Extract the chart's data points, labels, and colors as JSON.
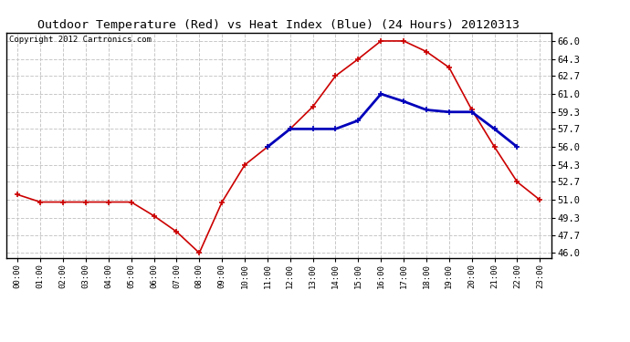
{
  "title": "Outdoor Temperature (Red) vs Heat Index (Blue) (24 Hours) 20120313",
  "copyright_text": "Copyright 2012 Cartronics.com",
  "x_labels": [
    "00:00",
    "01:00",
    "02:00",
    "03:00",
    "04:00",
    "05:00",
    "06:00",
    "07:00",
    "08:00",
    "09:00",
    "10:00",
    "11:00",
    "12:00",
    "13:00",
    "14:00",
    "15:00",
    "16:00",
    "17:00",
    "18:00",
    "19:00",
    "20:00",
    "21:00",
    "22:00",
    "23:00"
  ],
  "temp_red": [
    51.5,
    50.8,
    50.8,
    50.8,
    50.8,
    50.8,
    49.5,
    48.0,
    46.0,
    50.8,
    54.3,
    56.0,
    57.7,
    59.8,
    62.7,
    64.3,
    66.0,
    66.0,
    65.0,
    63.5,
    59.5,
    56.0,
    52.7,
    51.0
  ],
  "heat_index_blue": [
    null,
    null,
    null,
    null,
    null,
    null,
    null,
    null,
    null,
    null,
    null,
    56.0,
    57.7,
    57.7,
    57.7,
    58.5,
    61.0,
    60.3,
    59.5,
    59.3,
    59.3,
    57.7,
    56.0,
    null
  ],
  "y_ticks": [
    46.0,
    47.7,
    49.3,
    51.0,
    52.7,
    54.3,
    56.0,
    57.7,
    59.3,
    61.0,
    62.7,
    64.3,
    66.0
  ],
  "ylim": [
    45.5,
    66.8
  ],
  "background_color": "#ffffff",
  "plot_bg_color": "#ffffff",
  "grid_color": "#c8c8c8",
  "red_color": "#cc0000",
  "blue_color": "#0000bb",
  "title_fontsize": 9.5,
  "copyright_fontsize": 6.5
}
